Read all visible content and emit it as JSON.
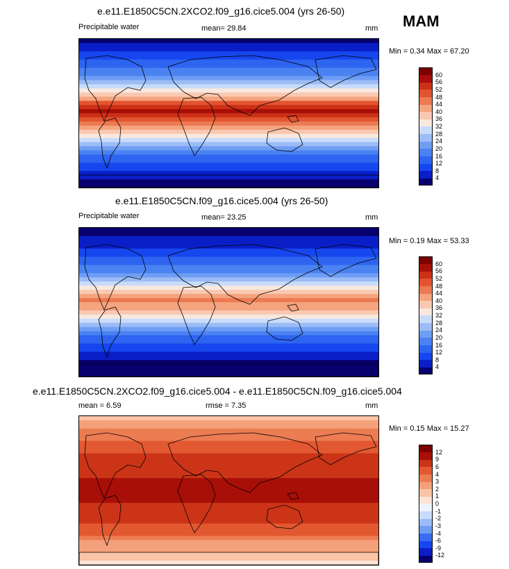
{
  "season": "MAM",
  "panels": [
    {
      "title": "e.e11.E1850C5CN.2XCO2.f09_g16.cice5.004 (yrs 26-50)",
      "field": "Precipitable water",
      "stat1": "mean=  29.84",
      "stat2": "",
      "units": "mm",
      "minmax": "Min =   0.34 Max =  67.20",
      "scale": "abs"
    },
    {
      "title": "e.e11.E1850C5CN.f09_g16.cice5.004 (yrs 26-50)",
      "field": "Precipitable water",
      "stat1": "mean=  23.25",
      "stat2": "",
      "units": "mm",
      "minmax": "Min =  0.19 Max =  53.33",
      "scale": "abs"
    },
    {
      "title": "e.e11.E1850C5CN.2XCO2.f09_g16.cice5.004 - e.e11.E1850C5CN.f09_g16.cice5.004",
      "field": "",
      "stat1": "mean =   6.59",
      "stat2": "rmse =   7.35",
      "units": "mm",
      "minmax": "Min =  0.15 Max =  15.27",
      "scale": "diff"
    }
  ],
  "chart_data": [
    {
      "type": "heatmap",
      "title": "e.e11.E1850C5CN.2XCO2.f09_g16.cice5.004 (yrs 26-50)",
      "subtitle": "Precipitable water",
      "units": "mm",
      "mean": 29.84,
      "min": 0.34,
      "max": 67.2,
      "colorbar_levels": [
        4,
        8,
        12,
        16,
        20,
        24,
        28,
        32,
        36,
        40,
        44,
        48,
        52,
        56,
        60
      ],
      "zonal_profile": [
        {
          "lat": 90,
          "value": 3
        },
        {
          "lat": 75,
          "value": 8
        },
        {
          "lat": 60,
          "value": 13
        },
        {
          "lat": 45,
          "value": 21
        },
        {
          "lat": 30,
          "value": 30
        },
        {
          "lat": 15,
          "value": 45
        },
        {
          "lat": 5,
          "value": 58
        },
        {
          "lat": -5,
          "value": 54
        },
        {
          "lat": -15,
          "value": 45
        },
        {
          "lat": -30,
          "value": 32
        },
        {
          "lat": -45,
          "value": 19
        },
        {
          "lat": -60,
          "value": 11
        },
        {
          "lat": -75,
          "value": 5
        },
        {
          "lat": -90,
          "value": 2
        }
      ]
    },
    {
      "type": "heatmap",
      "title": "e.e11.E1850C5CN.f09_g16.cice5.004 (yrs 26-50)",
      "subtitle": "Precipitable water",
      "units": "mm",
      "mean": 23.25,
      "min": 0.19,
      "max": 53.33,
      "colorbar_levels": [
        4,
        8,
        12,
        16,
        20,
        24,
        28,
        32,
        36,
        40,
        44,
        48,
        52,
        56,
        60
      ],
      "zonal_profile": [
        {
          "lat": 90,
          "value": 2
        },
        {
          "lat": 75,
          "value": 5
        },
        {
          "lat": 60,
          "value": 9
        },
        {
          "lat": 45,
          "value": 15
        },
        {
          "lat": 30,
          "value": 23
        },
        {
          "lat": 15,
          "value": 36
        },
        {
          "lat": 5,
          "value": 46
        },
        {
          "lat": -5,
          "value": 43
        },
        {
          "lat": -15,
          "value": 35
        },
        {
          "lat": -30,
          "value": 24
        },
        {
          "lat": -45,
          "value": 14
        },
        {
          "lat": -60,
          "value": 8
        },
        {
          "lat": -75,
          "value": 3
        },
        {
          "lat": -90,
          "value": 1
        }
      ]
    },
    {
      "type": "heatmap",
      "title": "e.e11.E1850C5CN.2XCO2.f09_g16.cice5.004 - e.e11.E1850C5CN.f09_g16.cice5.004",
      "units": "mm",
      "mean": 6.59,
      "rmse": 7.35,
      "min": 0.15,
      "max": 15.27,
      "colorbar_levels": [
        -12,
        -9,
        -6,
        -4,
        -3,
        -2,
        -1,
        0,
        1,
        2,
        3,
        4,
        6,
        9,
        12
      ],
      "zonal_profile": [
        {
          "lat": 90,
          "value": 1
        },
        {
          "lat": 75,
          "value": 3
        },
        {
          "lat": 60,
          "value": 4
        },
        {
          "lat": 45,
          "value": 6
        },
        {
          "lat": 30,
          "value": 7
        },
        {
          "lat": 15,
          "value": 9
        },
        {
          "lat": 5,
          "value": 12
        },
        {
          "lat": -5,
          "value": 11
        },
        {
          "lat": -15,
          "value": 9
        },
        {
          "lat": -30,
          "value": 8
        },
        {
          "lat": -45,
          "value": 5
        },
        {
          "lat": -60,
          "value": 3
        },
        {
          "lat": -75,
          "value": 2
        },
        {
          "lat": -90,
          "value": 0
        }
      ]
    }
  ],
  "colors": {
    "abs": [
      "#08006e",
      "#0a1ec8",
      "#1646ee",
      "#2d64f0",
      "#4a82f2",
      "#6e9ef4",
      "#9cbcf6",
      "#c8dcfa",
      "#f8e8de",
      "#fac8b0",
      "#f4a47e",
      "#ec7a52",
      "#e25430",
      "#cc3118",
      "#a80f08",
      "#7d0000"
    ],
    "diff": [
      "#08006e",
      "#0a1ec8",
      "#1646ee",
      "#3a6cf2",
      "#6e9ef4",
      "#9cbcf6",
      "#c8dcfa",
      "#eef2fc",
      "#fce4d6",
      "#fac4a6",
      "#f4a07a",
      "#ec7c52",
      "#e25830",
      "#cc3418",
      "#a80f08",
      "#7d0000"
    ]
  }
}
